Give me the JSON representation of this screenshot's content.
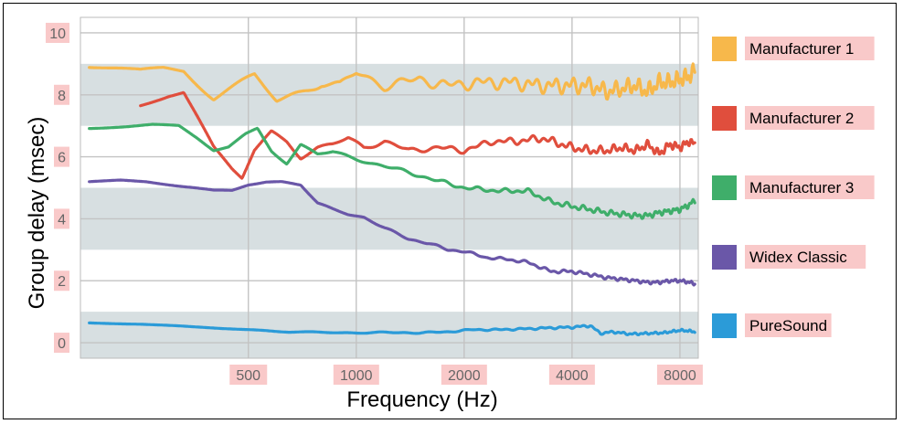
{
  "chart_data": {
    "type": "line",
    "xlabel": "Frequency (Hz)",
    "ylabel": "Group delay (msec)",
    "x_scale": "log",
    "xlim": [
      170,
      9000
    ],
    "ylim": [
      -0.5,
      10.5
    ],
    "x_ticks": [
      500,
      1000,
      2000,
      4000,
      8000
    ],
    "x_tick_labels": [
      "500",
      "1000",
      "2000",
      "4000",
      "8000"
    ],
    "y_ticks": [
      0,
      2,
      4,
      6,
      8,
      10
    ],
    "y_tick_labels": [
      "0",
      "2",
      "4",
      "6",
      "8",
      "10"
    ],
    "grid": true,
    "background_bands": true,
    "legend_position": "right",
    "series": [
      {
        "name": "Manufacturer 1",
        "color": "#f7b84b",
        "x": [
          180,
          220,
          250,
          290,
          330,
          400,
          450,
          520,
          600,
          700,
          800,
          900,
          1000,
          1200,
          1500,
          1800,
          2200,
          2700,
          3300,
          4000,
          4500,
          5000,
          5500,
          6000,
          6500,
          7000,
          7500,
          8000,
          8500,
          8800
        ],
        "y": [
          8.9,
          8.85,
          8.8,
          8.9,
          8.85,
          7.9,
          8.2,
          8.6,
          7.8,
          8.1,
          8.4,
          8.3,
          8.7,
          8.3,
          8.5,
          8.3,
          8.4,
          8.4,
          8.3,
          8.3,
          8.3,
          8.1,
          8.2,
          8.3,
          8.1,
          8.4,
          8.4,
          8.5,
          8.6,
          8.8
        ],
        "wobble": 0.3
      },
      {
        "name": "Manufacturer 2",
        "color": "#e04e3d",
        "x": [
          250,
          300,
          330,
          360,
          400,
          450,
          480,
          520,
          580,
          640,
          700,
          780,
          860,
          950,
          1050,
          1200,
          1400,
          1700,
          2000,
          2400,
          2800,
          3300,
          4000,
          4500,
          5000,
          5500,
          6000,
          6500,
          7000,
          7500,
          8000,
          8500,
          8800
        ],
        "y": [
          7.7,
          8.0,
          8.1,
          7.3,
          6.3,
          5.6,
          5.3,
          6.2,
          6.8,
          6.5,
          6.0,
          6.3,
          6.4,
          6.6,
          6.3,
          6.5,
          6.2,
          6.3,
          6.2,
          6.5,
          6.5,
          6.6,
          6.3,
          6.2,
          6.2,
          6.3,
          6.2,
          6.4,
          6.1,
          6.4,
          6.3,
          6.5,
          6.4
        ],
        "wobble": 0.15
      },
      {
        "name": "Manufacturer 3",
        "color": "#3fae6a",
        "x": [
          180,
          230,
          270,
          320,
          360,
          400,
          440,
          490,
          530,
          580,
          640,
          700,
          780,
          860,
          950,
          1100,
          1300,
          1600,
          2000,
          2500,
          3000,
          3500,
          4000,
          4500,
          5000,
          5500,
          6000,
          6500,
          7000,
          7500,
          8000,
          8500,
          8800
        ],
        "y": [
          6.95,
          7.0,
          7.05,
          7.0,
          6.6,
          6.2,
          6.3,
          6.7,
          6.9,
          6.2,
          5.8,
          6.4,
          6.1,
          6.15,
          6.0,
          5.8,
          5.6,
          5.3,
          5.0,
          4.9,
          4.9,
          4.55,
          4.4,
          4.3,
          4.2,
          4.15,
          4.1,
          4.1,
          4.2,
          4.25,
          4.3,
          4.45,
          4.6
        ],
        "wobble": 0.1
      },
      {
        "name": "Widex Classic",
        "color": "#6a57a8",
        "x": [
          180,
          220,
          260,
          300,
          350,
          400,
          450,
          500,
          560,
          620,
          700,
          780,
          860,
          950,
          1050,
          1200,
          1400,
          1600,
          1800,
          2000,
          2300,
          2600,
          3000,
          3500,
          4000,
          4500,
          5000,
          5500,
          6000,
          6500,
          7000,
          7500,
          8000,
          8500,
          8800
        ],
        "y": [
          5.2,
          5.25,
          5.2,
          5.1,
          5.0,
          4.9,
          4.9,
          5.1,
          5.2,
          5.2,
          5.1,
          4.5,
          4.3,
          4.15,
          4.05,
          3.7,
          3.35,
          3.2,
          3.0,
          2.95,
          2.75,
          2.7,
          2.6,
          2.3,
          2.3,
          2.2,
          2.1,
          2.05,
          2.0,
          1.95,
          1.95,
          2.0,
          2.0,
          1.95,
          1.9
        ],
        "wobble": 0.06
      },
      {
        "name": "PureSound",
        "color": "#2b9bd8",
        "x": [
          180,
          250,
          350,
          450,
          550,
          650,
          800,
          1000,
          1200,
          1500,
          1800,
          2100,
          2500,
          3000,
          3500,
          4000,
          4500,
          4800,
          5200,
          5800,
          6500,
          7200,
          8000,
          8500,
          8800
        ],
        "y": [
          0.65,
          0.6,
          0.5,
          0.45,
          0.4,
          0.35,
          0.33,
          0.32,
          0.33,
          0.32,
          0.35,
          0.42,
          0.42,
          0.45,
          0.48,
          0.5,
          0.55,
          0.3,
          0.35,
          0.28,
          0.3,
          0.32,
          0.4,
          0.38,
          0.35
        ],
        "wobble": 0.04
      }
    ]
  }
}
